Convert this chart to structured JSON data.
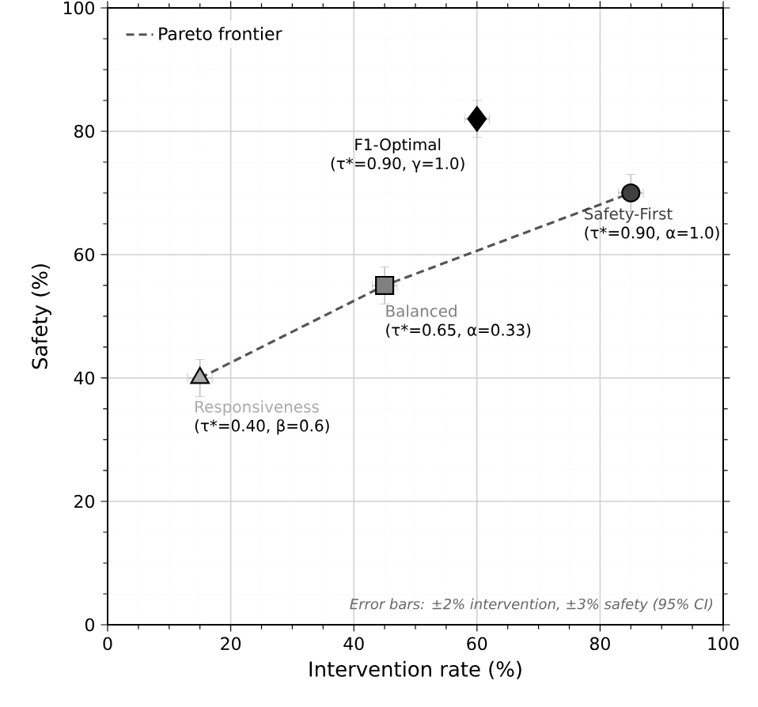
{
  "chart_data": {
    "type": "scatter",
    "xlabel": "Intervention rate (%)",
    "ylabel": "Safety (%)",
    "xlim": [
      0,
      100
    ],
    "ylim": [
      0,
      100
    ],
    "xticks": [
      0,
      20,
      40,
      60,
      80,
      100
    ],
    "yticks": [
      0,
      20,
      40,
      60,
      80,
      100
    ],
    "grid": true,
    "legend": "top left",
    "series": [
      {
        "name": "Pareto frontier",
        "type": "line",
        "color": "#555555",
        "line_style": "dashed",
        "x": [
          15,
          45,
          85
        ],
        "values": [
          40,
          55,
          70
        ]
      },
      {
        "name": "Responsiveness",
        "type": "scatter",
        "marker": "triangle",
        "color": "#aaaaaa",
        "x": [
          15
        ],
        "values": [
          40
        ],
        "errors": [
          3
        ],
        "xerrors": [
          2
        ]
      },
      {
        "name": "Balanced",
        "type": "scatter",
        "marker": "square",
        "color": "#808080",
        "x": [
          45
        ],
        "values": [
          55
        ],
        "errors": [
          3
        ],
        "xerrors": [
          2
        ]
      },
      {
        "name": "Safety-First",
        "type": "scatter",
        "marker": "circle",
        "color": "#404040",
        "x": [
          85
        ],
        "values": [
          70
        ],
        "errors": [
          3
        ],
        "xerrors": [
          2
        ]
      },
      {
        "name": "F1-Optimal",
        "type": "scatter",
        "marker": "diamond",
        "color": "#000000",
        "x": [
          60
        ],
        "values": [
          82
        ],
        "errors": [
          3
        ],
        "xerrors": [
          2
        ]
      }
    ],
    "annotations": [
      {
        "text": "(τ*=0.40, β=0.6)",
        "x": 15,
        "y": 40
      },
      {
        "text": "(τ*=0.65, α=0.33)",
        "x": 45,
        "y": 55
      },
      {
        "text": "(τ*=0.90, α=1.0)",
        "x": 85,
        "y": 70
      },
      {
        "text": "(τ*=0.90, γ=1.0)",
        "x": 60,
        "y": 82
      },
      "Error bars: ±2% intervention, ±3% safety (95% CI)"
    ]
  }
}
